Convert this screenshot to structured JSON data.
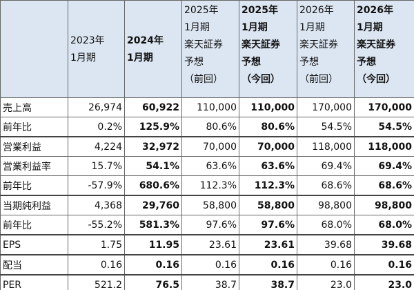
{
  "header": {
    "columns": [
      {
        "lines": [
          "2023年",
          "1月期"
        ]
      },
      {
        "lines": [
          "2024年",
          "1月期"
        ]
      },
      {
        "lines": [
          "2025年",
          "1月期",
          "楽天証券",
          "予想",
          "（前回）"
        ]
      },
      {
        "lines": [
          "2025年",
          "1月期",
          "楽天証券",
          "予想",
          "（今回）"
        ]
      },
      {
        "lines": [
          "2026年",
          "1月期",
          "楽天証券",
          "予想",
          "（前回）"
        ]
      },
      {
        "lines": [
          "2026年",
          "1月期",
          "楽天証券",
          "予想",
          "（今回）"
        ]
      }
    ]
  },
  "rows": [
    {
      "label": "売上高",
      "values": [
        "26,974",
        "60,922",
        "110,000",
        "110,000",
        "170,000",
        "170,000"
      ]
    },
    {
      "label": "前年比",
      "values": [
        "0.2%",
        "125.9%",
        "80.6%",
        "80.6%",
        "54.5%",
        "54.5%"
      ]
    },
    {
      "label": "営業利益",
      "values": [
        "4,224",
        "32,972",
        "70,000",
        "70,000",
        "118,000",
        "118,000"
      ]
    },
    {
      "label": "営業利益率",
      "values": [
        "15.7%",
        "54.1%",
        "63.6%",
        "63.6%",
        "69.4%",
        "69.4%"
      ]
    },
    {
      "label": "前年比",
      "values": [
        "-57.9%",
        "680.6%",
        "112.3%",
        "112.3%",
        "68.6%",
        "68.6%"
      ]
    },
    {
      "label": "当期純利益",
      "values": [
        "4,368",
        "29,760",
        "58,800",
        "58,800",
        "98,800",
        "98,800"
      ]
    },
    {
      "label": "前年比",
      "values": [
        "-55.2%",
        "581.3%",
        "97.6%",
        "97.6%",
        "68.0%",
        "68.0%"
      ]
    },
    {
      "label": "EPS",
      "values": [
        "1.75",
        "11.95",
        "23.61",
        "23.61",
        "39.68",
        "39.68"
      ]
    },
    {
      "label": "配当",
      "values": [
        "0.16",
        "0.16",
        "0.16",
        "0.16",
        "0.16",
        "0.16"
      ]
    },
    {
      "label": "PER",
      "values": [
        "521.2",
        "76.5",
        "38.7",
        "38.7",
        "23.0",
        "23.0"
      ]
    }
  ]
}
